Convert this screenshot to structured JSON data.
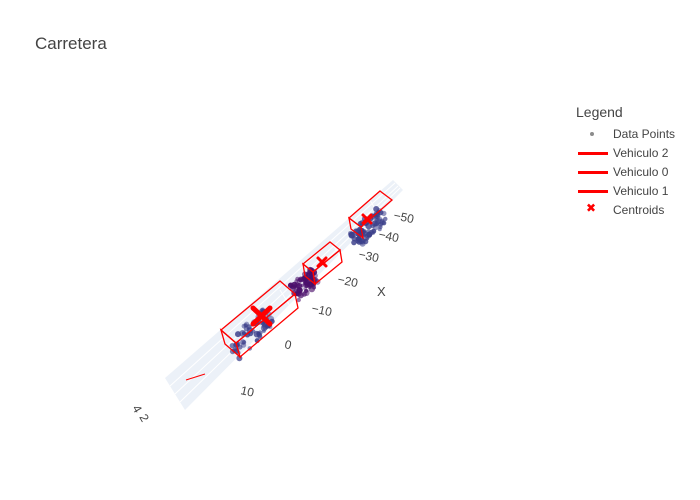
{
  "chart_data": {
    "type": "scatter3d",
    "title": "Carretera",
    "axes": {
      "x": {
        "label": "X",
        "ticks": [
          10,
          0,
          -10,
          -20,
          -30,
          -40,
          -50
        ],
        "tick_labels": [
          "10",
          "0",
          "−10",
          "−20",
          "−30",
          "−40",
          "−50"
        ]
      },
      "y": {
        "label": "",
        "tick_labels": [
          "4",
          "2"
        ]
      }
    },
    "legend": {
      "title": "Legend",
      "position": "right",
      "entries": [
        {
          "name": "Data Points",
          "kind": "marker",
          "color": "#8c8c8c"
        },
        {
          "name": "Vehiculo 2",
          "kind": "line",
          "color": "#ff0000"
        },
        {
          "name": "Vehiculo 0",
          "kind": "line",
          "color": "#ff0000"
        },
        {
          "name": "Vehiculo 1",
          "kind": "line",
          "color": "#ff0000"
        },
        {
          "name": "Centroids",
          "kind": "x",
          "color": "#ff0000"
        }
      ]
    },
    "clusters": [
      {
        "name": "Vehiculo 0",
        "x_range": [
          -10,
          3
        ],
        "color": "#3b3f8a"
      },
      {
        "name": "Vehiculo 1",
        "x_range": [
          -25,
          -18
        ],
        "color": "#4b0f6b"
      },
      {
        "name": "Vehiculo 2",
        "x_range": [
          -48,
          -38
        ],
        "color": "#3b3f8a"
      }
    ],
    "centroids_x": [
      -4,
      -21,
      -42
    ]
  }
}
